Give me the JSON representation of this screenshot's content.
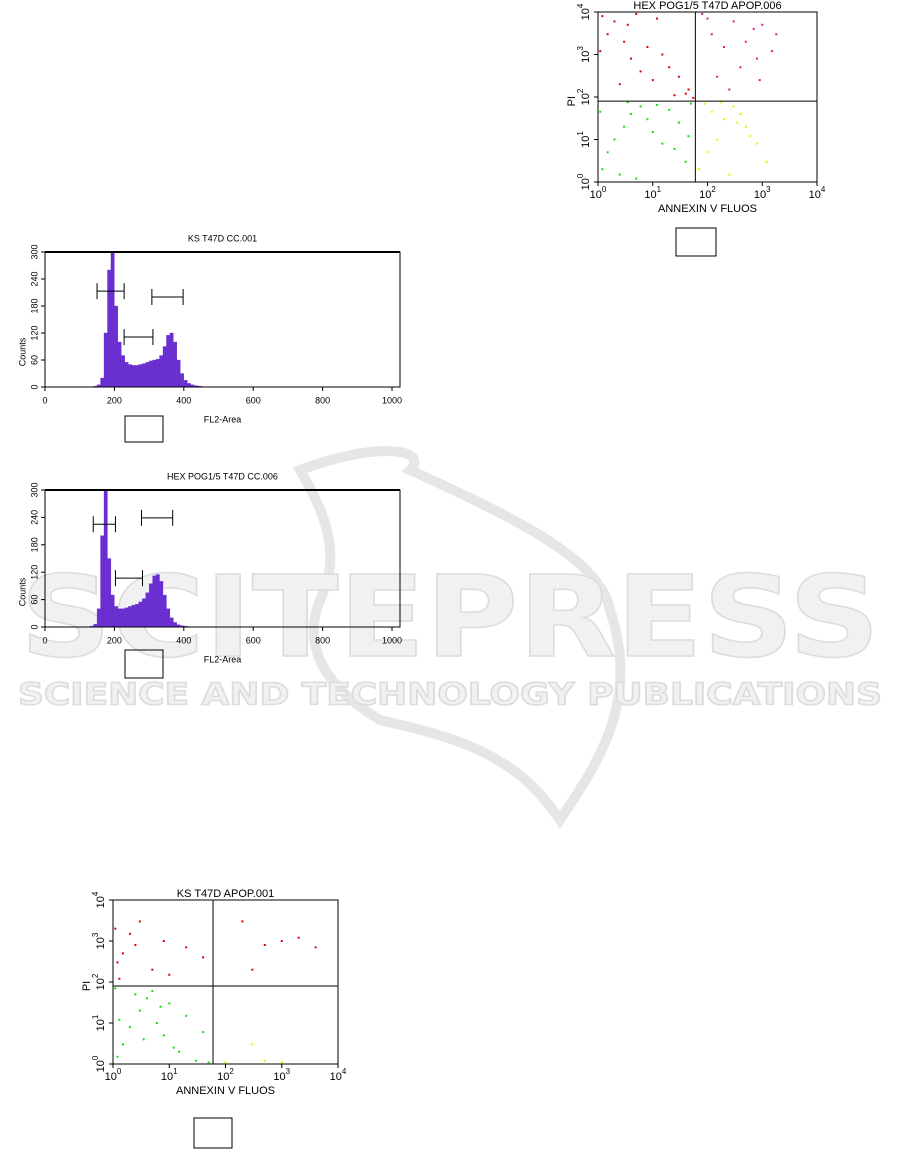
{
  "watermark": {
    "title": "SCITEPRESS",
    "subtitle": "SCIENCE AND TECHNOLOGY PUBLICATIONS"
  },
  "chart_data": [
    {
      "type": "histogram",
      "title": "KS T47D CC.001",
      "x_label": "FL2-Area",
      "y_label": "Counts",
      "color": "#6a2fd0",
      "bins": [
        140,
        150,
        160,
        170,
        180,
        190,
        200,
        210,
        220,
        230,
        240,
        250,
        260,
        270,
        280,
        290,
        300,
        310,
        320,
        330,
        340,
        350,
        360,
        370,
        380,
        390,
        400,
        410,
        420,
        430,
        440,
        450,
        460
      ],
      "counts": [
        2,
        5,
        20,
        120,
        260,
        300,
        180,
        100,
        70,
        55,
        50,
        48,
        48,
        50,
        52,
        55,
        58,
        60,
        62,
        70,
        90,
        115,
        120,
        100,
        60,
        30,
        15,
        8,
        5,
        3,
        2,
        1
      ],
      "gates": [
        {
          "x": [
            150,
            228
          ],
          "y": 213
        },
        {
          "x": [
            228,
            311
          ],
          "y": 111
        },
        {
          "x": [
            308,
            398
          ],
          "y": 200
        }
      ],
      "xlim": [
        0,
        1023
      ],
      "xticks": [
        0,
        200,
        400,
        600,
        800,
        1000
      ],
      "ylim": [
        0,
        300
      ],
      "yticks": [
        0,
        60,
        120,
        180,
        240,
        300
      ]
    },
    {
      "type": "histogram",
      "title": "HEX POG1/5 T47D CC.006",
      "x_label": "FL2-Area",
      "y_label": "Counts",
      "color": "#6a2fd0",
      "bins": [
        130,
        140,
        150,
        160,
        170,
        180,
        190,
        200,
        210,
        220,
        230,
        240,
        250,
        260,
        270,
        280,
        290,
        300,
        310,
        320,
        330,
        340,
        350,
        360,
        370,
        380,
        390,
        400,
        410,
        420
      ],
      "counts": [
        2,
        6,
        40,
        200,
        300,
        150,
        70,
        45,
        40,
        40,
        42,
        45,
        48,
        50,
        55,
        62,
        75,
        95,
        112,
        115,
        100,
        70,
        40,
        20,
        10,
        5,
        3,
        2,
        1
      ],
      "gates": [
        {
          "x": [
            139,
            203
          ],
          "y": 225
        },
        {
          "x": [
            203,
            281
          ],
          "y": 107
        },
        {
          "x": [
            278,
            368
          ],
          "y": 239
        }
      ],
      "xlim": [
        0,
        1023
      ],
      "xticks": [
        0,
        200,
        400,
        600,
        800,
        1000
      ],
      "ylim": [
        0,
        300
      ],
      "yticks": [
        0,
        60,
        120,
        180,
        240,
        300
      ]
    },
    {
      "type": "scatter",
      "title": "HEX POG1/5 T47D APOP.006",
      "x_label": "ANNEXIN V FLUOS",
      "y_label": "PI",
      "log_scale": true,
      "quadrant": {
        "x": 60,
        "y": 80
      },
      "xlim": [
        1,
        10000
      ],
      "ylim": [
        1,
        10000
      ],
      "xticks": [
        {
          "value": 1,
          "label": "10",
          "sup": "0"
        },
        {
          "value": 10,
          "label": "10",
          "sup": "1"
        },
        {
          "value": 100,
          "label": "10",
          "sup": "2"
        },
        {
          "value": 1000,
          "label": "10",
          "sup": "3"
        },
        {
          "value": 10000,
          "label": "10",
          "sup": "4"
        }
      ],
      "yticks": [
        {
          "value": 1,
          "label": "10",
          "sup": "0"
        },
        {
          "value": 10,
          "label": "10",
          "sup": "1"
        },
        {
          "value": 100,
          "label": "10",
          "sup": "2"
        },
        {
          "value": 1000,
          "label": "10",
          "sup": "3"
        },
        {
          "value": 10000,
          "label": "10",
          "sup": "4"
        }
      ],
      "series": [
        {
          "color": "#e00000",
          "x": [
            1.2,
            1.5,
            2,
            3,
            5,
            8,
            12,
            20,
            30,
            45,
            2.5,
            6,
            15,
            40,
            1.1,
            4,
            10,
            25,
            55,
            3.5
          ],
          "values": [
            8000,
            3000,
            6000,
            2000,
            9000,
            1500,
            7000,
            500,
            300,
            150,
            200,
            400,
            1000,
            120,
            1200,
            800,
            250,
            110,
            95,
            5000
          ]
        },
        {
          "color": "#e0189a",
          "x": [
            80,
            120,
            200,
            300,
            500,
            800,
            1000,
            1500,
            150,
            400,
            700,
            250,
            900,
            100,
            1800
          ],
          "values": [
            9000,
            3000,
            1500,
            6000,
            2000,
            800,
            5000,
            1200,
            300,
            500,
            4000,
            150,
            250,
            7000,
            3000
          ]
        },
        {
          "color": "#10e010",
          "x": [
            1.2,
            1.5,
            2,
            3,
            4,
            6,
            8,
            10,
            15,
            20,
            30,
            40,
            50,
            2.5,
            5,
            12,
            25,
            1.1,
            3.5,
            45
          ],
          "values": [
            2,
            5,
            10,
            20,
            40,
            60,
            30,
            15,
            8,
            50,
            25,
            3,
            70,
            1.5,
            1.2,
            65,
            6,
            45,
            75,
            12
          ]
        },
        {
          "color": "#f0f000",
          "x": [
            70,
            100,
            150,
            200,
            300,
            500,
            800,
            1200,
            90,
            400,
            250,
            120,
            600,
            180,
            350
          ],
          "values": [
            2,
            5,
            10,
            30,
            60,
            20,
            8,
            3,
            70,
            40,
            1.5,
            45,
            12,
            75,
            25
          ]
        }
      ]
    },
    {
      "type": "scatter",
      "title": "KS T47D APOP.001",
      "x_label": "ANNEXIN V FLUOS",
      "y_label": "PI",
      "log_scale": true,
      "quadrant": {
        "x": 60,
        "y": 80
      },
      "xlim": [
        1,
        10000
      ],
      "ylim": [
        1,
        10000
      ],
      "xticks": [
        {
          "value": 1,
          "label": "10",
          "sup": "0"
        },
        {
          "value": 10,
          "label": "10",
          "sup": "1"
        },
        {
          "value": 100,
          "label": "10",
          "sup": "2"
        },
        {
          "value": 1000,
          "label": "10",
          "sup": "3"
        },
        {
          "value": 10000,
          "label": "10",
          "sup": "4"
        }
      ],
      "yticks": [
        {
          "value": 1,
          "label": "10",
          "sup": "0"
        },
        {
          "value": 10,
          "label": "10",
          "sup": "1"
        },
        {
          "value": 100,
          "label": "10",
          "sup": "2"
        },
        {
          "value": 1000,
          "label": "10",
          "sup": "3"
        },
        {
          "value": 10000,
          "label": "10",
          "sup": "4"
        }
      ],
      "series": [
        {
          "color": "#e00000",
          "x": [
            1.1,
            1.5,
            2,
            3,
            1.2,
            5,
            8,
            10,
            2.5,
            1.3,
            20,
            40,
            200,
            500,
            1000,
            2000,
            4000,
            300
          ],
          "values": [
            2000,
            500,
            1500,
            3000,
            300,
            200,
            1000,
            150,
            800,
            120,
            700,
            400,
            3000,
            800,
            1000,
            1200,
            700,
            200
          ]
        },
        {
          "color": "#10e010",
          "x": [
            1.2,
            1.5,
            2,
            3,
            4,
            5,
            6,
            8,
            10,
            15,
            20,
            30,
            1.1,
            2.5,
            3.5,
            7,
            12,
            1.3,
            50,
            40
          ],
          "values": [
            1.5,
            3,
            8,
            20,
            40,
            60,
            10,
            5,
            30,
            2,
            15,
            1.2,
            70,
            50,
            4,
            25,
            2.5,
            12,
            1.1,
            6
          ]
        },
        {
          "color": "#f0f000",
          "x": [
            100,
            300,
            500,
            1000
          ],
          "values": [
            1.1,
            3,
            1.2,
            1.1
          ]
        }
      ]
    }
  ]
}
